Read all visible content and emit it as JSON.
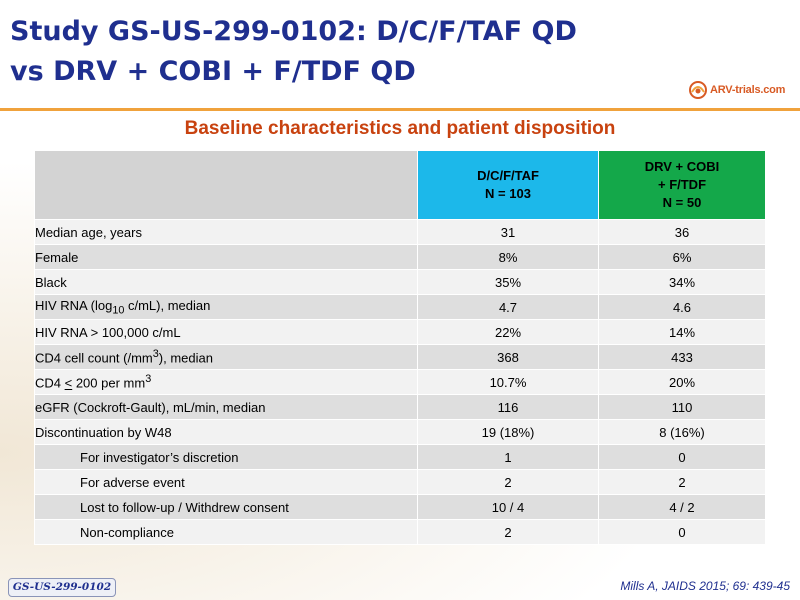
{
  "header": {
    "title_line1": "Study GS-US-299-0102: D/C/F/TAF QD",
    "title_line2": "vs DRV + COBI + F/TDF QD",
    "logo_text": "ARV-trials.com",
    "accent_color": "#f0a23c",
    "title_color": "#1f2f8f"
  },
  "subtitle": "Baseline characteristics and patient disposition",
  "table": {
    "col_a": {
      "line1": "D/C/F/TAF",
      "line2": "N = 103",
      "color": "#1cb8ea"
    },
    "col_b": {
      "line1": "DRV + COBI",
      "line2": "+ F/TDF",
      "line3": "N = 50",
      "color": "#14a84a"
    },
    "rows": [
      {
        "label": "Median age, years",
        "a": "31",
        "b": "36"
      },
      {
        "label": "Female",
        "a": "8%",
        "b": "6%"
      },
      {
        "label": "Black",
        "a": "35%",
        "b": "34%"
      },
      {
        "label_pre": "HIV RNA (log",
        "label_sub": "10",
        "label_post": " c/mL), median",
        "a": "4.7",
        "b": "4.6"
      },
      {
        "label": "HIV RNA > 100,000 c/mL",
        "a": "22%",
        "b": "14%"
      },
      {
        "label_pre": "CD4 cell count (/mm",
        "label_sup": "3",
        "label_post": "), median",
        "a": "368",
        "b": "433"
      },
      {
        "label_pre": "CD4 ",
        "label_u": "<",
        "label_mid": " 200 per mm",
        "label_sup": "3",
        "a": "10.7%",
        "b": "20%"
      },
      {
        "label": "eGFR (Cockroft-Gault), mL/min, median",
        "a": "116",
        "b": "110"
      },
      {
        "label": "Discontinuation by W48",
        "a": "19 (18%)",
        "b": "8 (16%)"
      },
      {
        "label": "For investigator’s discretion",
        "a": "1",
        "b": "0"
      },
      {
        "label": "For adverse event",
        "a": "2",
        "b": "2"
      },
      {
        "label": "Lost to follow-up / Withdrew consent",
        "a": "10 / 4",
        "b": "4 / 2"
      },
      {
        "label": "Non-compliance",
        "a": "2",
        "b": "0"
      }
    ]
  },
  "footer": {
    "study_tag": "GS-US-299-0102",
    "citation": "Mills A, JAIDS 2015; 69: 439-45"
  }
}
